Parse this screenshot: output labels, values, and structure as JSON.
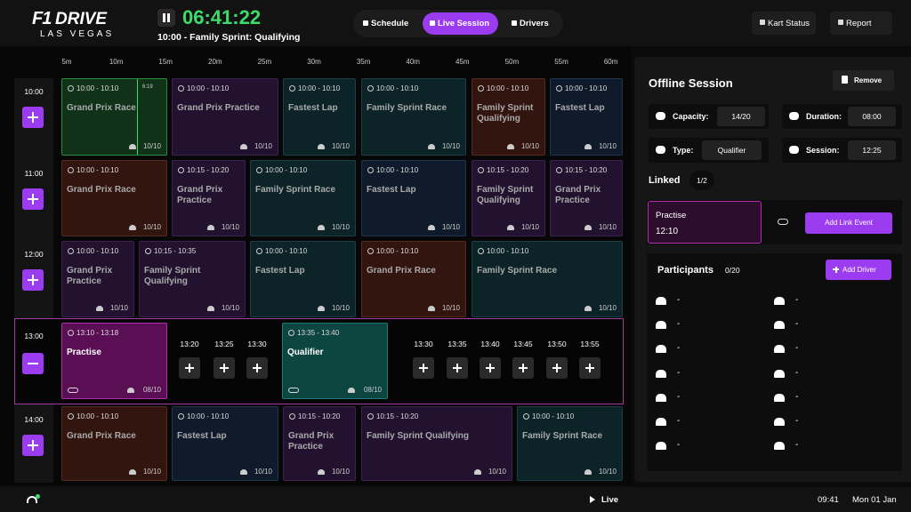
{
  "header": {
    "logo": "F1",
    "brand": "DRIVE",
    "location": "LAS VEGAS",
    "clock": "06:41:22",
    "current": "10:00 - Family Sprint: Qualifying",
    "nav": [
      "Schedule",
      "Live Session",
      "Drivers"
    ],
    "actions": [
      "Kart Status",
      "Report"
    ]
  },
  "timeline": {
    "ticks": [
      "5m",
      "10m",
      "15m",
      "20m",
      "25m",
      "30m",
      "35m",
      "40m",
      "45m",
      "50m",
      "55m",
      "60m"
    ],
    "rows": [
      {
        "time": "10:00",
        "events": [
          {
            "time": "10:00 - 10:10",
            "name": "Grand Prix Race",
            "capacity": "10/10",
            "progress": "6:19"
          },
          {
            "time": "10:00 - 10:10",
            "name": "Grand Prix Practice",
            "capacity": "10/10"
          },
          {
            "time": "10:00 - 10:10",
            "name": "Fastest Lap",
            "capacity": "10/10"
          },
          {
            "time": "10:00 - 10:10",
            "name": "Family Sprint Race",
            "capacity": "10/10"
          },
          {
            "time": "10:00 - 10:10",
            "name": "Family Sprint Qualifying",
            "capacity": "10/10"
          },
          {
            "time": "10:00 - 10:10",
            "name": "Fastest Lap",
            "capacity": "10/10"
          }
        ]
      },
      {
        "time": "11:00",
        "events": [
          {
            "time": "10:00 - 10:10",
            "name": "Grand Prix Race",
            "capacity": "10/10"
          },
          {
            "time": "10:15 - 10:20",
            "name": "Grand Prix Practice",
            "capacity": "10/10"
          },
          {
            "time": "10:00 - 10:10",
            "name": "Family Sprint Race",
            "capacity": "10/10"
          },
          {
            "time": "10:00 - 10:10",
            "name": "Fastest Lap",
            "capacity": "10/10"
          },
          {
            "time": "10:15 - 10:20",
            "name": "Family Sprint Qualifying",
            "capacity": "10/10"
          },
          {
            "time": "10:15 - 10:20",
            "name": "Grand Prix Practice",
            "capacity": "10/10"
          }
        ]
      },
      {
        "time": "12:00",
        "events": [
          {
            "time": "10:00 - 10:10",
            "name": "Grand Prix Practice",
            "capacity": "10/10"
          },
          {
            "time": "10:15 - 10:35",
            "name": "Family Sprint Qualifying",
            "capacity": "10/10"
          },
          {
            "time": "10:00 - 10:10",
            "name": "Fastest Lap",
            "capacity": "10/10"
          },
          {
            "time": "10:00 - 10:10",
            "name": "Grand Prix Race",
            "capacity": "10/10"
          },
          {
            "time": "10:00 - 10:10",
            "name": "Family Sprint Race",
            "capacity": "10/10"
          }
        ]
      },
      {
        "time": "13:00",
        "events": [
          {
            "time": "13:10 - 13:18",
            "name": "Practise",
            "capacity": "08/10"
          },
          {
            "time": "13:35 - 13:40",
            "name": "Qualifier",
            "capacity": "08/10"
          }
        ],
        "slots": [
          "13:20",
          "13:25",
          "13:30",
          "13:30",
          "13:35",
          "13:40",
          "13:45",
          "13:50",
          "13:55"
        ]
      },
      {
        "time": "14:00",
        "events": [
          {
            "time": "10:00 - 10:10",
            "name": "Grand Prix Race",
            "capacity": "10/10"
          },
          {
            "time": "10:00 - 10:10",
            "name": "Fastest Lap",
            "capacity": "10/10"
          },
          {
            "time": "10:15 - 10:20",
            "name": "Grand Prix Practice",
            "capacity": "10/10"
          },
          {
            "time": "10:15 - 10:20",
            "name": "Family Sprint Qualifying",
            "capacity": "10/10"
          },
          {
            "time": "10:00 - 10:10",
            "name": "Family Sprint Race",
            "capacity": "10/10"
          }
        ]
      }
    ]
  },
  "panel": {
    "title": "Offline Session",
    "remove": "Remove",
    "fields": [
      {
        "label": "Capacity:",
        "value": "14/20"
      },
      {
        "label": "Duration:",
        "value": "08:00"
      },
      {
        "label": "Type:",
        "value": "Qualifier"
      },
      {
        "label": "Session:",
        "value": "12:25"
      }
    ],
    "linked": {
      "label": "Linked",
      "count": "1/2",
      "event": {
        "name": "Practise",
        "time": "12:10"
      },
      "add": "Add Link Event"
    },
    "participants": {
      "label": "Participants",
      "count": "0/20",
      "add": "Add Driver",
      "drivers": [
        "-",
        "-",
        "-",
        "-",
        "-",
        "-",
        "-",
        "-",
        "-",
        "-",
        "-",
        "-",
        "-",
        "-"
      ]
    }
  },
  "footer": {
    "status": "Live",
    "time": "09:41",
    "date": "Mon 01 Jan"
  }
}
